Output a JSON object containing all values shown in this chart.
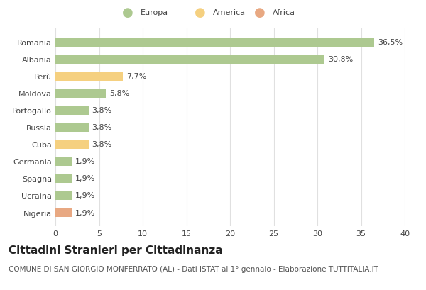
{
  "categories": [
    "Romania",
    "Albania",
    "Perù",
    "Moldova",
    "Portogallo",
    "Russia",
    "Cuba",
    "Germania",
    "Spagna",
    "Ucraina",
    "Nigeria"
  ],
  "values": [
    36.5,
    30.8,
    7.7,
    5.8,
    3.8,
    3.8,
    3.8,
    1.9,
    1.9,
    1.9,
    1.9
  ],
  "labels": [
    "36,5%",
    "30,8%",
    "7,7%",
    "5,8%",
    "3,8%",
    "3,8%",
    "3,8%",
    "1,9%",
    "1,9%",
    "1,9%",
    "1,9%"
  ],
  "colors": [
    "#adc990",
    "#adc990",
    "#f5d080",
    "#adc990",
    "#adc990",
    "#adc990",
    "#f5d080",
    "#adc990",
    "#adc990",
    "#adc990",
    "#e8a882"
  ],
  "legend_labels": [
    "Europa",
    "America",
    "Africa"
  ],
  "legend_colors": [
    "#adc990",
    "#f5d080",
    "#e8a882"
  ],
  "title": "Cittadini Stranieri per Cittadinanza",
  "subtitle": "COMUNE DI SAN GIORGIO MONFERRATO (AL) - Dati ISTAT al 1° gennaio - Elaborazione TUTTITALIA.IT",
  "xlim": [
    0,
    40
  ],
  "xticks": [
    0,
    5,
    10,
    15,
    20,
    25,
    30,
    35,
    40
  ],
  "background_color": "#ffffff",
  "grid_color": "#e0e0e0",
  "title_fontsize": 11,
  "subtitle_fontsize": 7.5,
  "label_fontsize": 8,
  "tick_fontsize": 8,
  "bar_height": 0.55
}
